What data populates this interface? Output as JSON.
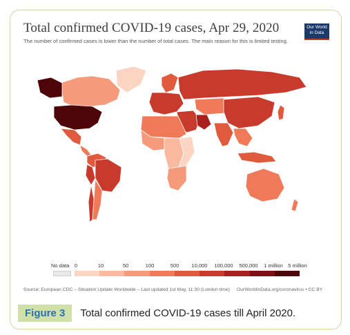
{
  "figure": {
    "title": "Total confirmed COVID-19 cases, Apr 29, 2020",
    "subtitle": "The number of confirmed cases is lower than the number of total cases. The main reason for this is limited testing.",
    "logo_line1": "Our World",
    "logo_line2": "in Data",
    "source": "Source: European CDC – Situation Update Worldwide – Last updated 1st May, 11:30 (London time)",
    "credit": "OurWorldinData.org/coronavirus • CC BY"
  },
  "legend": {
    "no_data_label": "No data",
    "labels": [
      "0",
      "10",
      "50",
      "100",
      "500",
      "10,000",
      "100,000",
      "500,000",
      "1 million",
      "5 million"
    ],
    "colors": [
      "#fde9e1",
      "#fbd4c2",
      "#f9b99f",
      "#f59a7b",
      "#ef7a59",
      "#e05a3e",
      "#c83a2b",
      "#a9211f",
      "#7e1014",
      "#4d0508"
    ],
    "no_data_color": "#e9e9e9"
  },
  "caption": {
    "label": "Figure 3",
    "text": "Total confirmed COVID-19 cases till April 2020."
  },
  "map_regions": [
    {
      "name": "United States",
      "color": "#4d0508"
    },
    {
      "name": "Alaska",
      "color": "#4d0508"
    },
    {
      "name": "Canada",
      "color": "#f59a7b"
    },
    {
      "name": "Greenland",
      "color": "#fbd4c2"
    },
    {
      "name": "Mexico",
      "color": "#e05a3e"
    },
    {
      "name": "Central America",
      "color": "#ef7a59"
    },
    {
      "name": "Brazil",
      "color": "#c83a2b"
    },
    {
      "name": "Colombia-Venezuela",
      "color": "#e05a3e"
    },
    {
      "name": "Peru",
      "color": "#c83a2b"
    },
    {
      "name": "Chile",
      "color": "#c83a2b"
    },
    {
      "name": "Argentina-Bolivia",
      "color": "#ef7a59"
    },
    {
      "name": "Europe",
      "color": "#c83a2b"
    },
    {
      "name": "Scandinavia",
      "color": "#e05a3e"
    },
    {
      "name": "Russia",
      "color": "#c83a2b"
    },
    {
      "name": "Turkey-Middle East",
      "color": "#c83a2b"
    },
    {
      "name": "Iran",
      "color": "#a9211f"
    },
    {
      "name": "Central Asia",
      "color": "#ef7a59"
    },
    {
      "name": "China",
      "color": "#c83a2b"
    },
    {
      "name": "India",
      "color": "#e05a3e"
    },
    {
      "name": "North Africa",
      "color": "#ef7a59"
    },
    {
      "name": "West Africa",
      "color": "#f59a7b"
    },
    {
      "name": "Central Africa",
      "color": "#f9b99f"
    },
    {
      "name": "East Africa",
      "color": "#fbd4c2"
    },
    {
      "name": "Southern Africa",
      "color": "#f59a7b"
    },
    {
      "name": "Southeast Asia",
      "color": "#ef7a59"
    },
    {
      "name": "Indonesia",
      "color": "#e05a3e"
    },
    {
      "name": "Japan",
      "color": "#e05a3e"
    },
    {
      "name": "Australia",
      "color": "#ef7a59"
    },
    {
      "name": "New Zealand",
      "color": "#ef7a59"
    }
  ]
}
